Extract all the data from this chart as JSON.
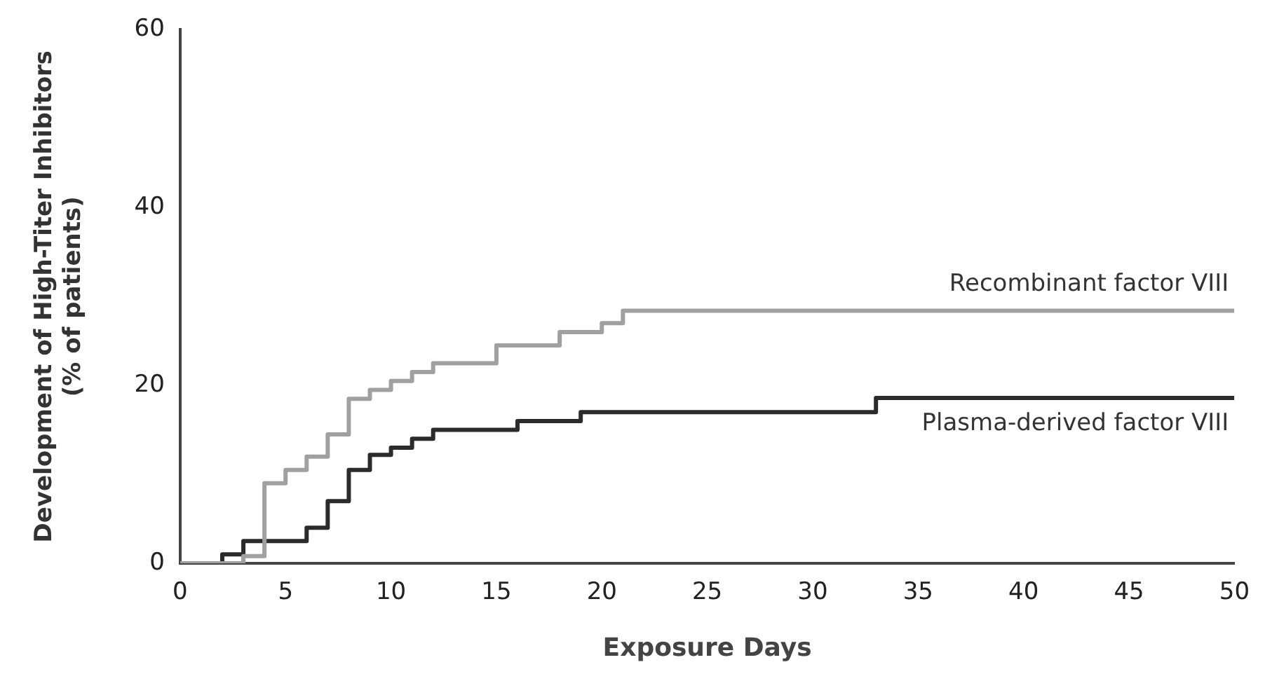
{
  "chart_data": {
    "type": "step",
    "xlabel": "Exposure Days",
    "ylabel": "Development of High-Titer Inhibitors\n(% of patients)",
    "xlim": [
      0,
      50
    ],
    "xticks": [
      0,
      5,
      10,
      15,
      20,
      25,
      30,
      35,
      40,
      45,
      50
    ],
    "ylim": [
      0,
      60
    ],
    "yticks": [
      0,
      20,
      40,
      60
    ],
    "grid": false,
    "legend": false,
    "marker": "none",
    "line_style": "solid",
    "series": [
      {
        "name": "Recombinant factor VIII",
        "color": "#a0a0a0",
        "x": [
          0,
          3,
          4,
          5,
          6,
          7,
          8,
          9,
          10,
          11,
          12,
          15,
          18,
          20,
          21,
          50
        ],
        "values": [
          0,
          0.8,
          9,
          10.5,
          12,
          14.5,
          18.5,
          19.5,
          20.5,
          21.5,
          22.5,
          24.5,
          26,
          27,
          28.4,
          28.4
        ]
      },
      {
        "name": "Plasma-derived factor VIII",
        "color": "#2b2b2b",
        "x": [
          0,
          2,
          3,
          6,
          7,
          8,
          9,
          10,
          11,
          12,
          16,
          19,
          33,
          50
        ],
        "values": [
          0,
          1,
          2.5,
          4,
          7,
          10.5,
          12.2,
          13,
          14,
          15,
          16,
          17,
          18.6,
          18.6
        ]
      }
    ]
  }
}
